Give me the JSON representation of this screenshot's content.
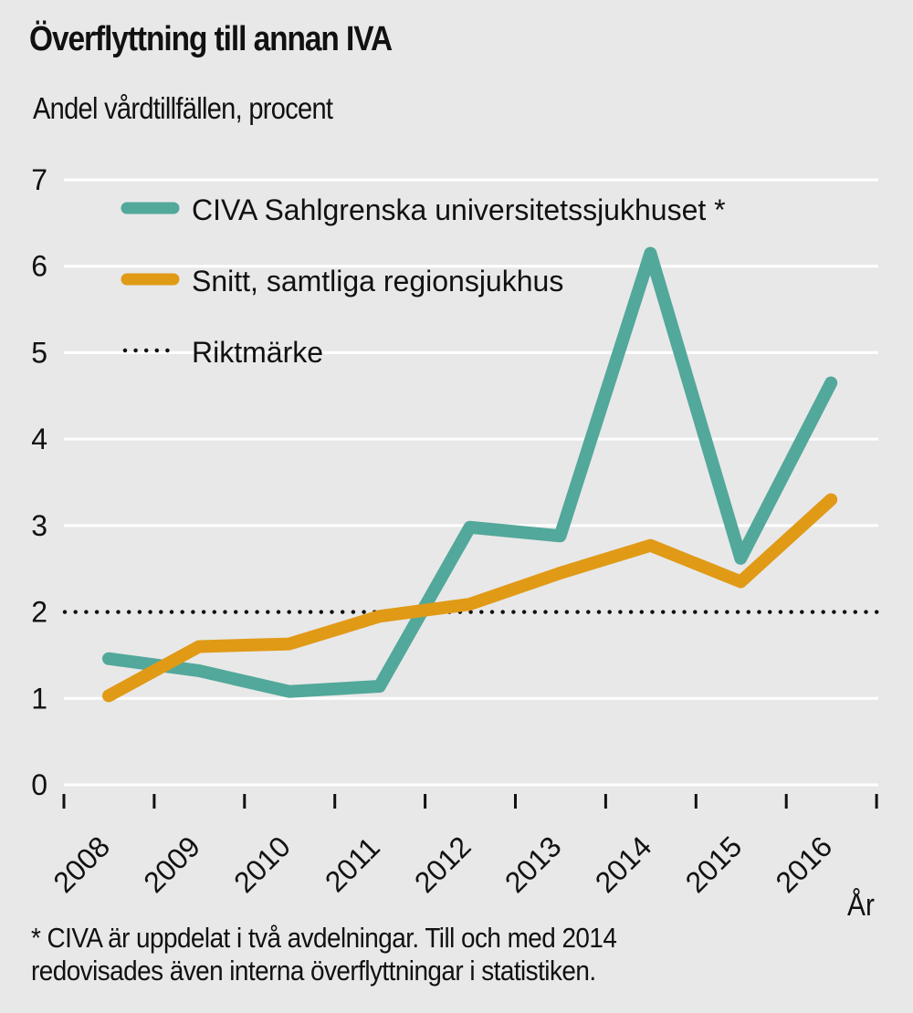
{
  "chart_data": {
    "type": "line",
    "title": "Överflyttning till annan IVA",
    "ylabel": "Andel vårdtillfällen, procent",
    "xlabel": "År",
    "x": [
      "2008",
      "2009",
      "2010",
      "2011",
      "2012",
      "2013",
      "2014",
      "2015",
      "2016"
    ],
    "ylim": [
      0,
      7
    ],
    "yticks": [
      "0",
      "1",
      "2",
      "3",
      "4",
      "5",
      "6",
      "7"
    ],
    "grid": true,
    "legend_position": "top-left",
    "series": [
      {
        "name": "CIVA Sahlgrenska universitetssjukhuset *",
        "color": "#52a89a",
        "style": "solid",
        "values": [
          1.46,
          1.32,
          1.08,
          1.14,
          2.98,
          2.88,
          6.15,
          2.62,
          4.65
        ]
      },
      {
        "name": "Snitt, samtliga regionsjukhus",
        "color": "#e09a16",
        "style": "solid",
        "values": [
          1.03,
          1.6,
          1.63,
          1.95,
          2.09,
          2.45,
          2.77,
          2.35,
          3.3
        ]
      }
    ],
    "reference_lines": [
      {
        "name": "Riktmärke",
        "value": 2,
        "style": "dotted",
        "color": "#111111"
      }
    ],
    "footnote": [
      "* CIVA är uppdelat i två avdelningar. Till och med 2014",
      "redovisades även interna överflyttningar i statistiken."
    ]
  }
}
